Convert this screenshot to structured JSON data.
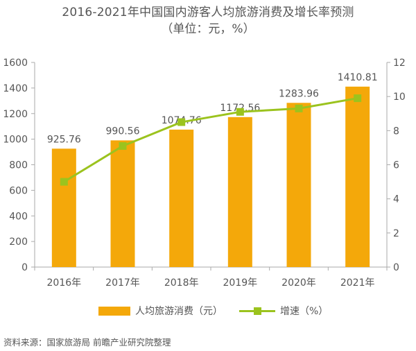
{
  "title_line1": "2016-2021年中国国内游客人均旅游消费及增长率预测",
  "title_line2": "（单位：元，%）",
  "colors": {
    "bar": "#F4A80A",
    "line": "#9BC31E",
    "axis": "#AAAAAA",
    "text": "#555555"
  },
  "chart_data": {
    "type": "bar",
    "categories": [
      "2016年",
      "2017年",
      "2018年",
      "2019年",
      "2020年",
      "2021年"
    ],
    "series": [
      {
        "name": "人均旅游消费（元）",
        "type": "bar",
        "axis": "left",
        "values": [
          925.76,
          990.56,
          1074.76,
          1172.56,
          1283.96,
          1410.81
        ],
        "labels": [
          "925.76",
          "990.56",
          "1074.76",
          "1172.56",
          "1283.96",
          "1410.81"
        ]
      },
      {
        "name": "增速（%）",
        "type": "line",
        "axis": "right",
        "values": [
          5.0,
          7.1,
          8.5,
          9.1,
          9.3,
          9.9
        ]
      }
    ],
    "y_left": {
      "min": 0,
      "max": 1600,
      "ticks": [
        "0",
        "200",
        "400",
        "600",
        "800",
        "1000",
        "1200",
        "1400",
        "1600"
      ]
    },
    "y_right": {
      "min": 0,
      "max": 12,
      "ticks": [
        "0",
        "2",
        "4",
        "6",
        "8",
        "10",
        "12"
      ]
    },
    "grid": false,
    "legend_position": "bottom"
  },
  "legend": {
    "bar_label": "人均旅游消费（元）",
    "line_label": "增速（%）"
  },
  "source": "资料来源：国家旅游局 前瞻产业研究院整理"
}
